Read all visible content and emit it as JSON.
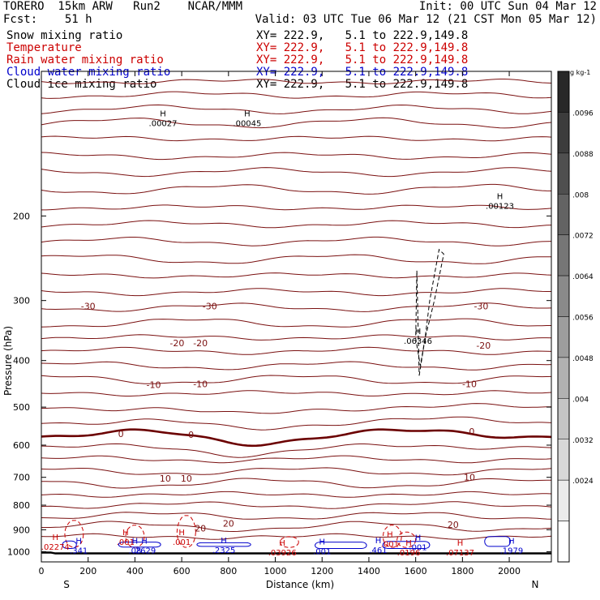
{
  "header": {
    "model": "TORERO  15km ARW   Run2    NCAR/MMM",
    "init": "Init: 00 UTC Sun 04 Mar 12",
    "fcst": "Fcst:    51 h",
    "valid": "Valid: 03 UTC Tue 06 Mar 12 (21 CST Mon 05 Mar 12)"
  },
  "legend": [
    {
      "label": "Snow mixing ratio",
      "xy": "XY= 222.9,   5.1 to 222.9,149.8",
      "color": "#000000"
    },
    {
      "label": "Temperature",
      "xy": "XY= 222.9,   5.1 to 222.9,149.8",
      "color": "#cc0000"
    },
    {
      "label": "Rain water mixing ratio",
      "xy": "XY= 222.9,   5.1 to 222.9,149.8",
      "color": "#cc0000"
    },
    {
      "label": "Cloud water mixing ratio",
      "xy": "XY= 222.9,   5.1 to 222.9,149.8",
      "color": "#0000cc"
    },
    {
      "label": "Cloud ice mixing ratio",
      "xy": "XY= 222.9,   5.1 to 222.9,149.8",
      "color": "#000000"
    }
  ],
  "chart_data": {
    "type": "line",
    "xlabel": "Distance (km)",
    "ylabel": "Pressure (hPa)",
    "xlim": [
      0,
      2180
    ],
    "ylim": [
      100,
      1050
    ],
    "y_scale": "log",
    "xticks": [
      0,
      200,
      400,
      600,
      800,
      1000,
      1200,
      1400,
      1600,
      1800,
      2000
    ],
    "yticks": [
      200,
      300,
      400,
      500,
      600,
      700,
      800,
      900,
      1000
    ],
    "left_end": "S",
    "right_end": "N",
    "temperature_labels": [
      {
        "x": 200,
        "p": 308,
        "text": "-30"
      },
      {
        "x": 720,
        "p": 308,
        "text": "-30"
      },
      {
        "x": 1880,
        "p": 308,
        "text": "-30"
      },
      {
        "x": 580,
        "p": 368,
        "text": "-20"
      },
      {
        "x": 680,
        "p": 368,
        "text": "-20"
      },
      {
        "x": 1890,
        "p": 372,
        "text": "-20"
      },
      {
        "x": 480,
        "p": 449,
        "text": "-10"
      },
      {
        "x": 680,
        "p": 447,
        "text": "-10"
      },
      {
        "x": 1830,
        "p": 447,
        "text": "-10"
      },
      {
        "x": 340,
        "p": 568,
        "text": "0"
      },
      {
        "x": 640,
        "p": 570,
        "text": "0"
      },
      {
        "x": 1840,
        "p": 562,
        "text": "0"
      },
      {
        "x": 530,
        "p": 703,
        "text": "10"
      },
      {
        "x": 620,
        "p": 703,
        "text": "10"
      },
      {
        "x": 1830,
        "p": 700,
        "text": "10"
      },
      {
        "x": 680,
        "p": 893,
        "text": "20"
      },
      {
        "x": 800,
        "p": 873,
        "text": "20"
      },
      {
        "x": 1760,
        "p": 878,
        "text": "20"
      }
    ],
    "extrema": [
      {
        "x": 520,
        "p": 125,
        "value": ".00027",
        "color": "#000000"
      },
      {
        "x": 880,
        "p": 125,
        "value": ".00045",
        "color": "#000000"
      },
      {
        "x": 1960,
        "p": 186,
        "value": ".00123",
        "color": "#000000"
      },
      {
        "x": 1610,
        "p": 355,
        "value": ".06346",
        "color": "#000000"
      },
      {
        "x": 60,
        "p": 953,
        "value": ".02274",
        "color": "#cc0000"
      },
      {
        "x": 360,
        "p": 930,
        "value": ".001",
        "color": "#cc0000"
      },
      {
        "x": 600,
        "p": 930,
        "value": ".001",
        "color": "#cc0000"
      },
      {
        "x": 160,
        "p": 970,
        "value": ".341",
        "color": "#0000cc"
      },
      {
        "x": 400,
        "p": 970,
        "value": ".08",
        "color": "#0000cc"
      },
      {
        "x": 440,
        "p": 970,
        "value": ".2629",
        "color": "#0000cc"
      },
      {
        "x": 780,
        "p": 968,
        "value": ".2325",
        "color": "#0000cc"
      },
      {
        "x": 1030,
        "p": 980,
        "value": ".03926",
        "color": "#cc0000"
      },
      {
        "x": 1200,
        "p": 973,
        "value": ".001",
        "color": "#0000cc"
      },
      {
        "x": 1440,
        "p": 968,
        "value": ".461",
        "color": "#0000cc"
      },
      {
        "x": 1490,
        "p": 940,
        "value": ".001",
        "color": "#cc0000"
      },
      {
        "x": 1610,
        "p": 955,
        "value": ".001",
        "color": "#0000cc"
      },
      {
        "x": 1570,
        "p": 980,
        "value": ".0196",
        "color": "#cc0000"
      },
      {
        "x": 1790,
        "p": 980,
        "value": ".07137",
        "color": "#cc0000"
      },
      {
        "x": 2010,
        "p": 970,
        "value": ".1979",
        "color": "#0000cc"
      }
    ],
    "colorbar": {
      "units": "g kg-1",
      "labels": [
        ".0096",
        ".0088",
        ".008",
        ".0072",
        ".0064",
        ".0056",
        ".0048",
        ".004",
        ".0032",
        ".0024"
      ]
    }
  }
}
